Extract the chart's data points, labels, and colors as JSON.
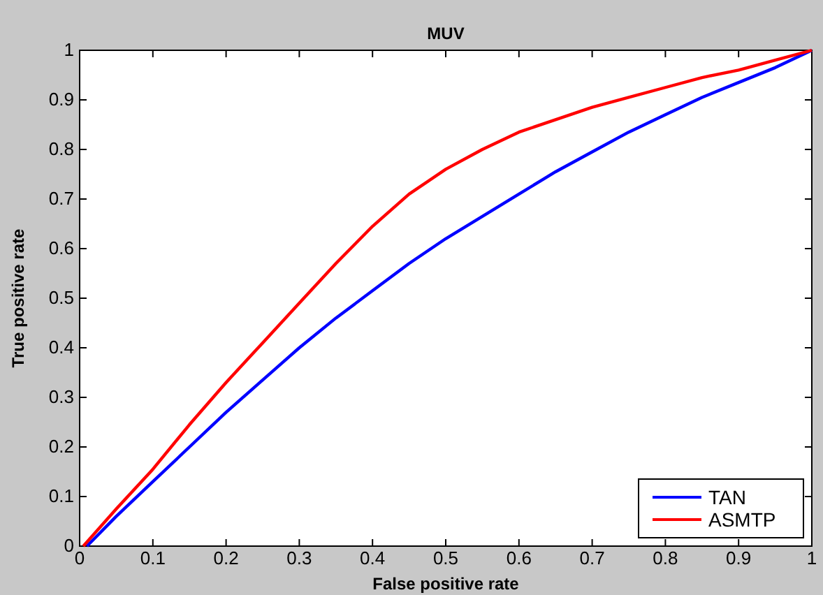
{
  "chart_data": {
    "type": "line",
    "title": "MUV",
    "xlabel": "False positive rate",
    "ylabel": "True positive rate",
    "xlim": [
      0,
      1
    ],
    "ylim": [
      0,
      1
    ],
    "xticks": [
      0,
      0.1,
      0.2,
      0.3,
      0.4,
      0.5,
      0.6,
      0.7,
      0.8,
      0.9,
      1
    ],
    "yticks": [
      0,
      0.1,
      0.2,
      0.3,
      0.4,
      0.5,
      0.6,
      0.7,
      0.8,
      0.9,
      1
    ],
    "grid": false,
    "legend": "bottom right",
    "marker": "none",
    "line_style": "solid",
    "series": [
      {
        "name": "TAN",
        "color": "#0000ff",
        "x": [
          0.01,
          0.05,
          0.1,
          0.15,
          0.2,
          0.25,
          0.3,
          0.35,
          0.4,
          0.45,
          0.5,
          0.55,
          0.6,
          0.65,
          0.7,
          0.75,
          0.8,
          0.85,
          0.9,
          0.95,
          1
        ],
        "values": [
          0,
          0.06,
          0.13,
          0.2,
          0.27,
          0.335,
          0.4,
          0.46,
          0.515,
          0.57,
          0.62,
          0.665,
          0.71,
          0.755,
          0.795,
          0.835,
          0.87,
          0.905,
          0.935,
          0.965,
          1
        ]
      },
      {
        "name": "ASMTP",
        "color": "#ff0000",
        "x": [
          0.005,
          0.05,
          0.1,
          0.15,
          0.2,
          0.25,
          0.3,
          0.35,
          0.4,
          0.45,
          0.5,
          0.55,
          0.6,
          0.65,
          0.7,
          0.75,
          0.8,
          0.85,
          0.9,
          0.95,
          1
        ],
        "values": [
          0,
          0.075,
          0.155,
          0.245,
          0.33,
          0.41,
          0.49,
          0.57,
          0.645,
          0.71,
          0.76,
          0.8,
          0.835,
          0.86,
          0.885,
          0.905,
          0.925,
          0.945,
          0.96,
          0.98,
          1
        ]
      }
    ]
  }
}
